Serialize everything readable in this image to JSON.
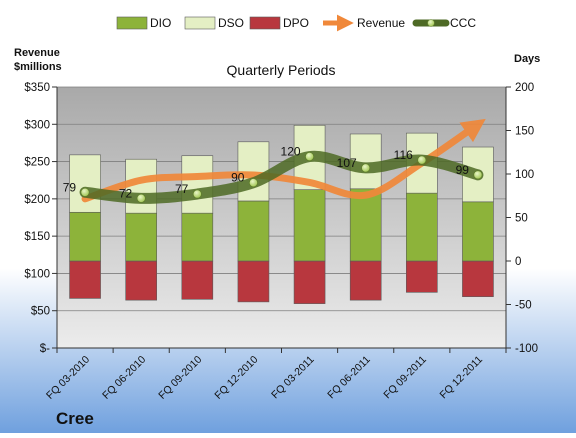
{
  "colors": {
    "dio": "#8db33a",
    "dso": "#e4efc4",
    "dpo": "#b8373e",
    "revenue": "#f0883a",
    "ccc": "#4e6a25",
    "ccc_marker": "#9cc24a",
    "panel_top": "#a9a9a9",
    "panel_bottom": "#ececec",
    "bg_top": "#ffffff",
    "bg_bottom": "#6fa0de"
  },
  "labels": {
    "left_axis_title": "Revenue\n$millions",
    "right_axis_title": "Days",
    "plot_title": "Quarterly Periods",
    "company": "Cree"
  },
  "chart_data": {
    "type": "bar",
    "title": "Quarterly Periods",
    "categories": [
      "FQ 03-2010",
      "FQ 06-2010",
      "FQ 09-2010",
      "FQ 12-2010",
      "FQ 03-2011",
      "FQ 06-2011",
      "FQ 09-2011",
      "FQ 12-2011"
    ],
    "left_axis": {
      "label": "Revenue\n$millions",
      "min": 0,
      "max": 350,
      "ticks": [
        0,
        50,
        100,
        150,
        200,
        250,
        300,
        350
      ],
      "tick_labels": [
        "$-",
        "$50",
        "$100",
        "$150",
        "$200",
        "$250",
        "$300",
        "$350"
      ]
    },
    "right_axis": {
      "label": "Days",
      "min": -100,
      "max": 200,
      "ticks": [
        -100,
        -50,
        0,
        50,
        100,
        150,
        200
      ],
      "tick_labels": [
        "-100",
        "-50",
        "0",
        "50",
        "100",
        "150",
        "200"
      ]
    },
    "legend": {
      "position": "top",
      "entries": [
        "DIO",
        "DSO",
        "DPO",
        "Revenue",
        "CCC"
      ]
    },
    "series": [
      {
        "name": "DIO",
        "type": "stacked-bar",
        "axis": "right",
        "values": [
          56,
          55,
          55,
          69,
          82,
          83,
          78,
          68
        ]
      },
      {
        "name": "DSO",
        "type": "stacked-bar",
        "axis": "right",
        "values": [
          66,
          62,
          66,
          68,
          74,
          63,
          69,
          63
        ]
      },
      {
        "name": "DPO",
        "type": "stacked-bar",
        "axis": "right",
        "values": [
          -43,
          -45,
          -44,
          -47,
          -49,
          -45,
          -36,
          -41
        ]
      },
      {
        "name": "Revenue",
        "type": "line",
        "axis": "left",
        "values": [
          200,
          225,
          230,
          232,
          222,
          205,
          248,
          300
        ]
      },
      {
        "name": "CCC",
        "type": "line",
        "axis": "right",
        "values": [
          79,
          72,
          77,
          90,
          120,
          107,
          116,
          99
        ],
        "data_labels": [
          "79",
          "72",
          "77",
          "90",
          "120",
          "107",
          "116",
          "99"
        ]
      }
    ]
  }
}
